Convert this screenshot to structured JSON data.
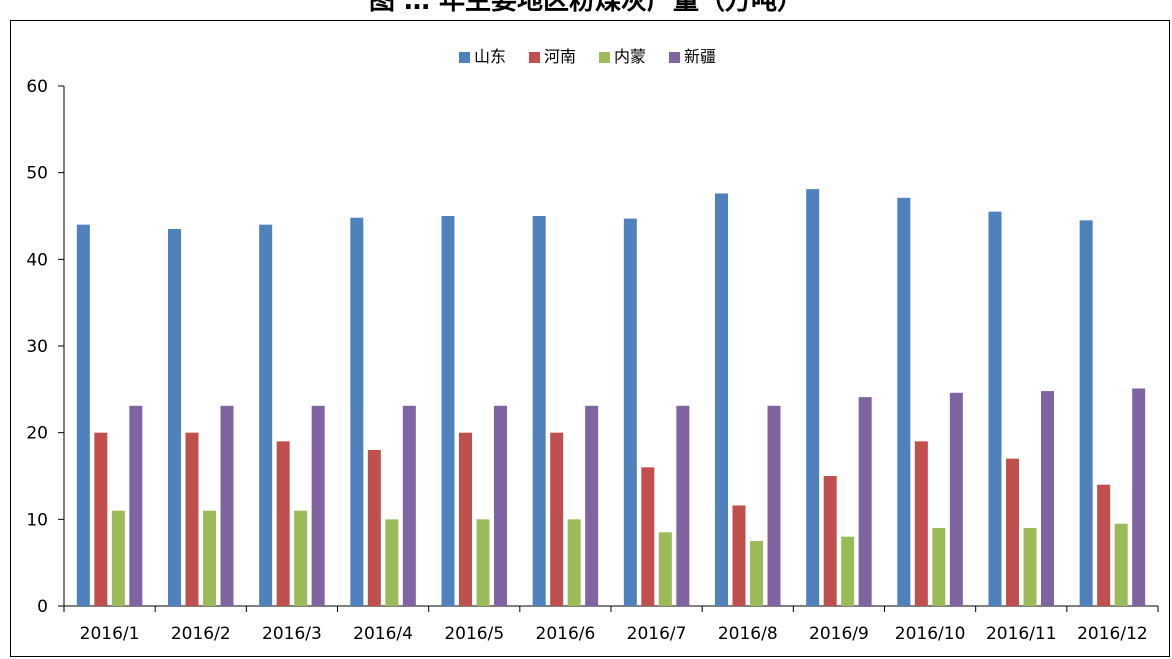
{
  "page": {
    "title_visible_fragment": "图 … 年主要地区粉煤灰产量（万吨）"
  },
  "chart_data": {
    "type": "bar",
    "title": "",
    "xlabel": "",
    "ylabel": "",
    "categories": [
      "2016/1",
      "2016/2",
      "2016/3",
      "2016/4",
      "2016/5",
      "2016/6",
      "2016/7",
      "2016/8",
      "2016/9",
      "2016/10",
      "2016/11",
      "2016/12"
    ],
    "ylim": [
      0,
      60
    ],
    "yticks": [
      0,
      10,
      20,
      30,
      40,
      50,
      60
    ],
    "grid": false,
    "legend_position": "top-center",
    "series": [
      {
        "name": "山东",
        "color": "#4F81BD",
        "values": [
          44,
          43.5,
          44,
          44.8,
          45,
          45,
          44.7,
          47.6,
          48.1,
          47.1,
          45.5,
          44.5
        ]
      },
      {
        "name": "河南",
        "color": "#C0504D",
        "values": [
          20,
          20,
          19,
          18,
          20,
          20,
          16,
          11.6,
          15,
          19,
          17,
          14
        ]
      },
      {
        "name": "内蒙",
        "color": "#9BBB59",
        "values": [
          11,
          11,
          11,
          10,
          10,
          10,
          8.5,
          7.5,
          8,
          9,
          9,
          9.5
        ]
      },
      {
        "name": "新疆",
        "color": "#8064A2",
        "values": [
          23.1,
          23.1,
          23.1,
          23.1,
          23.1,
          23.1,
          23.1,
          23.1,
          24.1,
          24.6,
          24.8,
          25.1
        ]
      }
    ]
  }
}
